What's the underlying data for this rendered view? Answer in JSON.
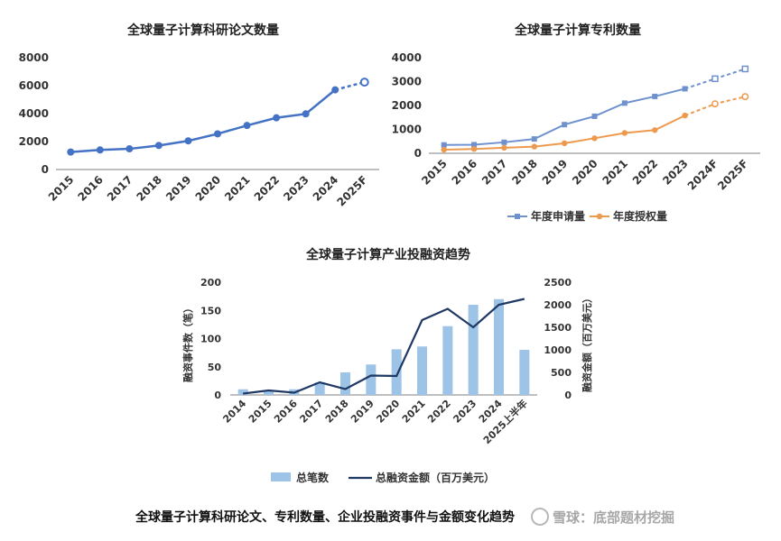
{
  "colors": {
    "papers": "#4472c4",
    "apply": "#6f92cf",
    "grant": "#ed9a4e",
    "bars": "#9dc3e6",
    "funding_line": "#1f3864",
    "axis": "#7f7f7f",
    "grid": "#e6e6e6"
  },
  "caption": "全球量子计算科研论文、专利数量、企业投融资事件与金额变化趋势",
  "watermark": "雪球：底部题材挖掘",
  "chart_data": [
    {
      "type": "line",
      "title": "全球量子计算科研论文数量",
      "categories": [
        "2015",
        "2016",
        "2017",
        "2018",
        "2019",
        "2020",
        "2021",
        "2022",
        "2023",
        "2024",
        "2025F"
      ],
      "series": [
        {
          "name": "科研论文数量",
          "values": [
            1250,
            1400,
            1480,
            1720,
            2050,
            2550,
            3150,
            3700,
            3980,
            5700,
            6250
          ],
          "forecast_from_index": 9
        }
      ],
      "ylim": [
        0,
        8000
      ],
      "yticks": [
        0,
        2000,
        4000,
        6000,
        8000
      ],
      "xlabel": "",
      "ylabel": ""
    },
    {
      "type": "line",
      "title": "全球量子计算专利数量",
      "categories": [
        "2015",
        "2016",
        "2017",
        "2018",
        "2019",
        "2020",
        "2021",
        "2022",
        "2023",
        "2024F",
        "2025F"
      ],
      "series": [
        {
          "name": "年度申请量",
          "values": [
            350,
            360,
            460,
            600,
            1200,
            1550,
            2100,
            2380,
            2700,
            3120,
            3530
          ],
          "forecast_from_index": 9
        },
        {
          "name": "年度授权量",
          "values": [
            150,
            180,
            230,
            280,
            420,
            630,
            850,
            970,
            1580,
            2070,
            2370
          ],
          "forecast_from_index": 9
        }
      ],
      "ylim": [
        0,
        4000
      ],
      "yticks": [
        0,
        1000,
        2000,
        3000,
        4000
      ],
      "legend": "bottom"
    },
    {
      "type": "bar",
      "title": "全球量子计算产业投融资趋势",
      "categories": [
        "2014",
        "2015",
        "2016",
        "2017",
        "2018",
        "2019",
        "2020",
        "2021",
        "2022",
        "2023",
        "2024",
        "2025上半年"
      ],
      "series": [
        {
          "name": "总笔数",
          "type": "bar",
          "axis": "left",
          "values": [
            10,
            8,
            10,
            22,
            40,
            54,
            81,
            86,
            122,
            160,
            170,
            80
          ]
        },
        {
          "name": "总融资金额（百万美元）",
          "type": "line",
          "axis": "right",
          "values": [
            30,
            100,
            50,
            280,
            130,
            430,
            420,
            1660,
            1910,
            1500,
            2000,
            2130
          ]
        }
      ],
      "ylabel": "融资事件数（笔）",
      "y2label": "融资金额（百万美元）",
      "ylim": [
        0,
        200
      ],
      "yticks": [
        0,
        50,
        100,
        150,
        200
      ],
      "y2lim": [
        0,
        2500
      ],
      "y2ticks": [
        0,
        500,
        1000,
        1500,
        2000,
        2500
      ],
      "legend": "bottom"
    }
  ]
}
